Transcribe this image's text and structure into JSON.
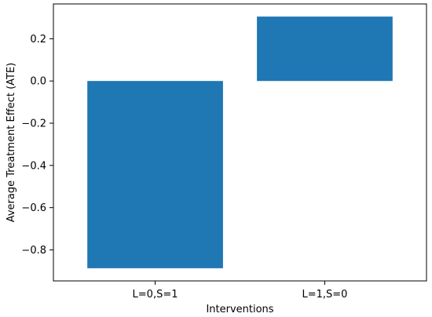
{
  "chart_data": {
    "type": "bar",
    "categories": [
      "L=0,S=1",
      "L=1,S=0"
    ],
    "values": [
      -0.887,
      0.305
    ],
    "title": "",
    "xlabel": "Interventions",
    "ylabel": "Average Treatment Effect (ATE)",
    "ylim": [
      -0.947,
      0.365
    ],
    "yticks": [
      -0.8,
      -0.6,
      -0.4,
      -0.2,
      0.0,
      0.2
    ],
    "ytick_labels": [
      "−0.8",
      "−0.6",
      "−0.4",
      "−0.2",
      "0.0",
      "0.2"
    ],
    "grid": false,
    "legend": "none",
    "bar_color": "#1f77b4"
  }
}
